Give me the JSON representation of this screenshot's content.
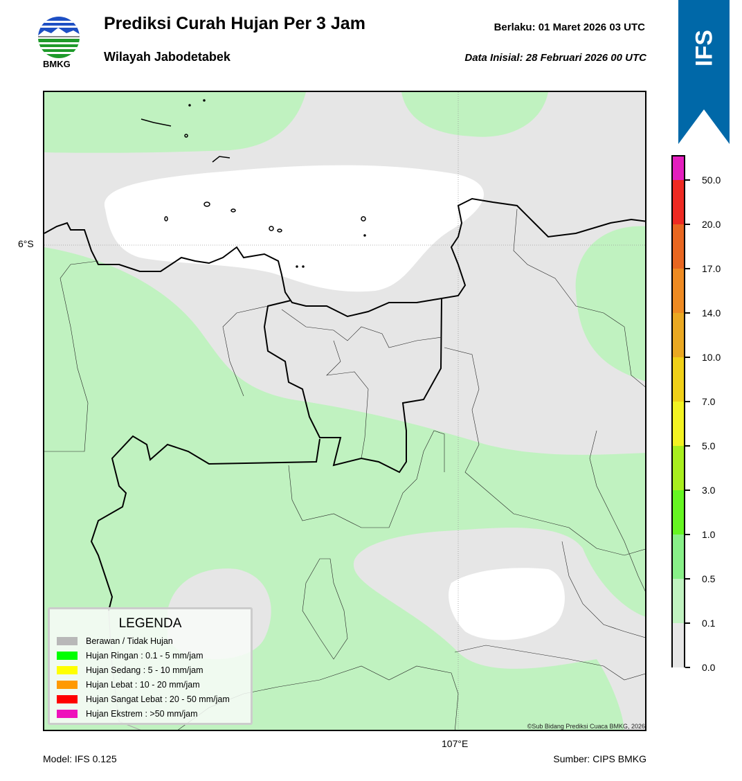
{
  "header": {
    "title": "Prediksi Curah Hujan Per 3 Jam",
    "subtitle": "Wilayah Jabodetabek",
    "valid_time": "Berlaku:  01 Maret 2026 03 UTC",
    "initial_data": "Data Inisial:  28 Februari 2026 00 UTC",
    "logo_text": "BMKG",
    "model_badge": "IFS",
    "badge_color": "#0068a8"
  },
  "map": {
    "lat_label": "6°S",
    "lon_label": "107°E",
    "copyright": "©Sub Bidang Prediksi Cuaca BMKG, 2026",
    "colors": {
      "no_rain": "#e6e6e6",
      "light": "#c0f2c0",
      "white": "#ffffff"
    }
  },
  "legend": {
    "title": "LEGENDA",
    "items": [
      {
        "label": "Berawan / Tidak Hujan",
        "color": "#b8b8b8"
      },
      {
        "label": "Hujan Ringan : 0.1 - 5 mm/jam",
        "color": "#00ff00"
      },
      {
        "label": "Hujan Sedang : 5 - 10 mm/jam",
        "color": "#ffff00"
      },
      {
        "label": "Hujan Lebat : 10 - 20 mm/jam",
        "color": "#ff9900"
      },
      {
        "label": "Hujan Sangat Lebat : 20 - 50 mm/jam",
        "color": "#ff0000"
      },
      {
        "label": "Hujan Ekstrem : >50 mm/jam",
        "color": "#ee11bb"
      }
    ]
  },
  "colorbar": {
    "ticks": [
      "0.0",
      "0.1",
      "0.5",
      "1.0",
      "3.0",
      "5.0",
      "7.0",
      "10.0",
      "14.0",
      "17.0",
      "20.0",
      "50.0"
    ],
    "colors": [
      "#e6e6e6",
      "#c0f2c0",
      "#88f088",
      "#66f522",
      "#a8ee1e",
      "#f2f222",
      "#f0d018",
      "#eaa822",
      "#ee8a22",
      "#e86620",
      "#ee2a22",
      "#e41ebe"
    ]
  },
  "footer": {
    "model": "Model: IFS 0.125",
    "source": "Sumber: CIPS BMKG"
  }
}
